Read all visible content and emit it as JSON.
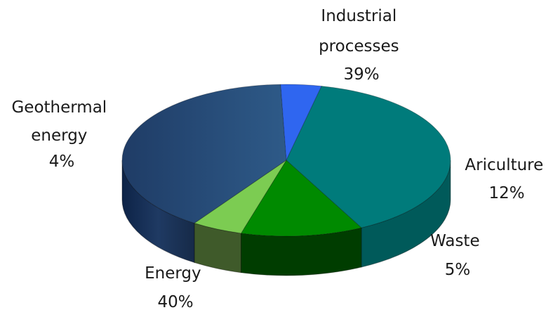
{
  "chart_data": {
    "type": "pie",
    "style": "3d",
    "slices": [
      {
        "label": "Industrial processes",
        "value": 39,
        "value_label": "39%",
        "color": "#007b7b"
      },
      {
        "label": "Ariculture",
        "value": 12,
        "value_label": "12%",
        "color": "#008a00"
      },
      {
        "label": "Waste",
        "value": 5,
        "value_label": "5%",
        "color": "#7ccc52"
      },
      {
        "label": "Energy",
        "value": 40,
        "value_label": "40%",
        "color": "#24466e"
      },
      {
        "label": "Geothermal energy",
        "value": 4,
        "value_label": "4%",
        "color": "#2f66f0"
      }
    ]
  }
}
